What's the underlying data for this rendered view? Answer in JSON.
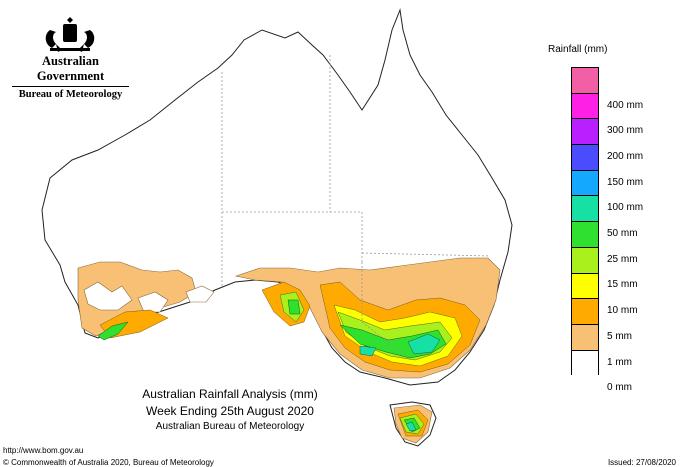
{
  "header": {
    "org": "Australian Government",
    "agency": "Bureau of Meteorology"
  },
  "legend": {
    "title": "Rainfall (mm)",
    "items": [
      {
        "label": "",
        "color": "#f35fa4"
      },
      {
        "label": "400 mm",
        "color": "#ff20e6"
      },
      {
        "label": "300 mm",
        "color": "#b820ff"
      },
      {
        "label": "200 mm",
        "color": "#4c4cff"
      },
      {
        "label": "150 mm",
        "color": "#14a8ff"
      },
      {
        "label": "100 mm",
        "color": "#17e0a4"
      },
      {
        "label": "50 mm",
        "color": "#2fe02f"
      },
      {
        "label": "25 mm",
        "color": "#aaf01c"
      },
      {
        "label": "15 mm",
        "color": "#ffff00"
      },
      {
        "label": "10 mm",
        "color": "#ffaa00"
      },
      {
        "label": "5 mm",
        "color": "#f8c075"
      },
      {
        "label": "1 mm",
        "color": "#ffffff"
      },
      {
        "label": "0 mm",
        "color": ""
      }
    ]
  },
  "caption": {
    "line1": "Australian Rainfall Analysis (mm)",
    "line2": "Week Ending 25th August 2020",
    "line3": "Australian Bureau of Meteorology"
  },
  "footer": {
    "url": "http://www.bom.gov.au",
    "copyright": "© Commonwealth of Australia 2020, Bureau of Meteorology",
    "issued": "Issued: 27/08/2020"
  }
}
